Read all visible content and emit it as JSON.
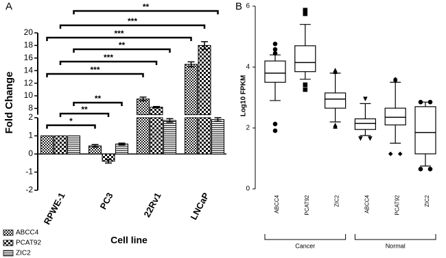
{
  "chart_data": [
    {
      "type": "bar",
      "panel": "A",
      "ylabel": "Fold Change",
      "xlabel": "Cell line",
      "categories": [
        "RPWE-1",
        "PC3",
        "22Rv1",
        "LNCaP"
      ],
      "series": [
        {
          "name": "ABCC4",
          "color": "#000000",
          "pattern": "fine-check",
          "values": [
            1,
            0.45,
            9.5,
            15
          ],
          "errors": [
            0,
            0.07,
            0.3,
            0.4
          ]
        },
        {
          "name": "PCAT92",
          "color": "#000000",
          "pattern": "coarse-check",
          "values": [
            1,
            -0.4,
            8.2,
            18
          ],
          "errors": [
            0,
            0.1,
            0.1,
            0.6
          ]
        },
        {
          "name": "ZIC2",
          "color": "#000000",
          "pattern": "h-lines",
          "values": [
            1,
            0.55,
            1.85,
            1.9
          ],
          "errors": [
            0,
            0.05,
            0.1,
            0.1
          ]
        }
      ],
      "ylim": [
        -2,
        20
      ],
      "axis_break": [
        2,
        7
      ],
      "yticks": [
        -2,
        -1,
        0,
        1,
        2,
        8,
        10,
        12,
        14,
        16,
        18,
        20
      ],
      "annotations": [
        {
          "label": "*",
          "series": "ABCC4",
          "from": "RPWE-1",
          "to": "PC3"
        },
        {
          "label": "**",
          "series": "PCAT92",
          "from": "RPWE-1",
          "to": "PC3"
        },
        {
          "label": "**",
          "series": "ZIC2",
          "from": "RPWE-1",
          "to": "PC3"
        },
        {
          "label": "***",
          "series": "ABCC4",
          "from": "RPWE-1",
          "to": "22Rv1"
        },
        {
          "label": "***",
          "series": "PCAT92",
          "from": "RPWE-1",
          "to": "22Rv1"
        },
        {
          "label": "**",
          "series": "ZIC2",
          "from": "RPWE-1",
          "to": "22Rv1"
        },
        {
          "label": "***",
          "series": "ABCC4",
          "from": "RPWE-1",
          "to": "LNCaP"
        },
        {
          "label": "***",
          "series": "PCAT92",
          "from": "RPWE-1",
          "to": "LNCaP"
        },
        {
          "label": "**",
          "series": "ZIC2",
          "from": "RPWE-1",
          "to": "LNCaP"
        }
      ]
    },
    {
      "type": "box",
      "panel": "B",
      "ylabel": "Log10 FPKM",
      "categories": [
        "ABCC4",
        "PCAT92",
        "ZIC2",
        "ABCC4",
        "PCAT92",
        "ZIC2"
      ],
      "groups": [
        {
          "name": "Cancer",
          "from": 0,
          "to": 2
        },
        {
          "name": "Normal",
          "from": 3,
          "to": 5
        }
      ],
      "markers": [
        "circle",
        "square",
        "triangle-up",
        "triangle-down",
        "diamond",
        "circle"
      ],
      "color": "#000000",
      "stats": [
        {
          "whislo": 2.9,
          "q1": 3.5,
          "med": 3.8,
          "q3": 4.2,
          "whishi": 4.4,
          "fliers": [
            4.76,
            4.58,
            4.45,
            2.13,
            1.91
          ]
        },
        {
          "whislo": 3.6,
          "q1": 3.85,
          "med": 4.15,
          "q3": 4.7,
          "whishi": 5.4,
          "fliers": [
            5.75,
            5.87,
            3.42,
            3.26
          ]
        },
        {
          "whislo": 2.2,
          "q1": 2.65,
          "med": 2.95,
          "q3": 3.15,
          "whishi": 3.8,
          "fliers": [
            3.9,
            3.85,
            2.1,
            2.05
          ]
        },
        {
          "whislo": 1.75,
          "q1": 1.95,
          "med": 2.15,
          "q3": 2.3,
          "whishi": 2.8,
          "fliers": [
            2.95,
            1.65,
            1.65
          ]
        },
        {
          "whislo": 1.5,
          "q1": 2.1,
          "med": 2.35,
          "q3": 2.65,
          "whishi": 3.5,
          "fliers": [
            3.6,
            3.55,
            1.15,
            1.15
          ]
        },
        {
          "whislo": 0.75,
          "q1": 1.15,
          "med": 1.85,
          "q3": 2.7,
          "whishi": 2.85,
          "fliers": [
            2.85,
            2.85,
            0.65,
            0.65
          ]
        }
      ],
      "ylim": [
        0,
        6
      ],
      "yticks": [
        0,
        2,
        4,
        6
      ]
    }
  ]
}
